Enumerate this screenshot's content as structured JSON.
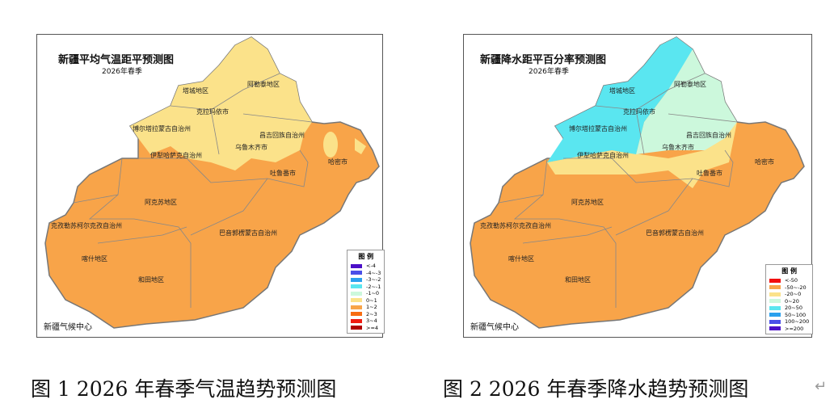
{
  "map1": {
    "title": "新疆平均气温距平预测图",
    "subtitle": "2026年春季",
    "credit": "新疆气候中心",
    "legend_title": "图 例",
    "legend": [
      {
        "label": "<-4",
        "color": "#4b0fc8"
      },
      {
        "label": "-4~-3",
        "color": "#4a4fe8"
      },
      {
        "label": "-3~-2",
        "color": "#2aa0ee"
      },
      {
        "label": "-2~-1",
        "color": "#5ae6f0"
      },
      {
        "label": "-1~0",
        "color": "#ccf8dc"
      },
      {
        "label": "0~1",
        "color": "#fbe28a"
      },
      {
        "label": "1~2",
        "color": "#f8a449"
      },
      {
        "label": "2~3",
        "color": "#f86d12"
      },
      {
        "label": "3~4",
        "color": "#f01a10"
      },
      {
        "label": ">=4",
        "color": "#b00000"
      }
    ],
    "regions": [
      "塔城地区",
      "阿勒泰地区",
      "克拉玛依市",
      "博尔塔拉蒙古自治州",
      "昌吉回族自治州",
      "伊犁哈萨克自治州",
      "乌鲁木齐市",
      "哈密市",
      "吐鲁番市",
      "阿克苏地区",
      "克孜勒苏柯尔克孜自治州",
      "巴音郭楞蒙古自治州",
      "喀什地区",
      "和田地区"
    ]
  },
  "map2": {
    "title": "新疆降水距平百分率预测图",
    "subtitle": "2026年春季",
    "credit": "新疆气候中心",
    "legend_title": "图 例",
    "legend": [
      {
        "label": "<-50",
        "color": "#f20d0d"
      },
      {
        "label": "-50~-20",
        "color": "#f8a449"
      },
      {
        "label": "-20~0",
        "color": "#fbe28a"
      },
      {
        "label": "0~20",
        "color": "#ccf8dc"
      },
      {
        "label": "20~50",
        "color": "#5ae6f0"
      },
      {
        "label": "50~100",
        "color": "#2aa0ee"
      },
      {
        "label": "100~200",
        "color": "#4a4fe8"
      },
      {
        "label": ">=200",
        "color": "#4b0fc8"
      }
    ],
    "regions": [
      "塔城地区",
      "阿勒泰地区",
      "克拉玛依市",
      "博尔塔拉蒙古自治州",
      "昌吉回族自治州",
      "伊犁哈萨克自治州",
      "乌鲁木齐市",
      "哈密市",
      "吐鲁番市",
      "阿克苏地区",
      "克孜勒苏柯尔克孜自治州",
      "巴音郭楞蒙古自治州",
      "喀什地区",
      "和田地区"
    ]
  },
  "captions": [
    "图 1 2026 年春季气温趋势预测图",
    "图 2 2026 年春季降水趋势预测图"
  ]
}
